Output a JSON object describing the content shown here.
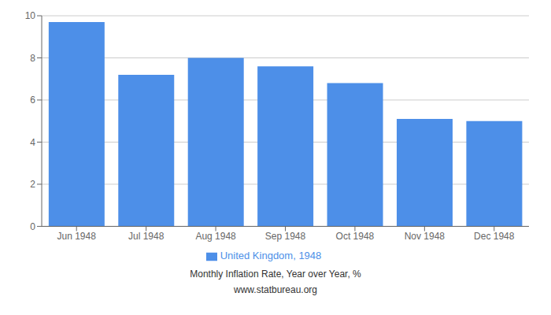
{
  "chart_data": {
    "type": "bar",
    "categories": [
      "Jun 1948",
      "Jul 1948",
      "Aug 1948",
      "Sep 1948",
      "Oct 1948",
      "Nov 1948",
      "Dec 1948"
    ],
    "series": [
      {
        "name": "United Kingdom, 1948",
        "color": "#4D8FE8",
        "values": [
          9.7,
          7.2,
          8.0,
          7.6,
          6.8,
          5.1,
          5.0
        ]
      }
    ],
    "ylim": [
      0,
      10
    ],
    "yticks": [
      0,
      2,
      4,
      6,
      8,
      10
    ],
    "grid": true,
    "legend": "bottom",
    "annotations": [
      "Monthly Inflation Rate, Year over Year, %",
      "www.statbureau.org"
    ]
  }
}
